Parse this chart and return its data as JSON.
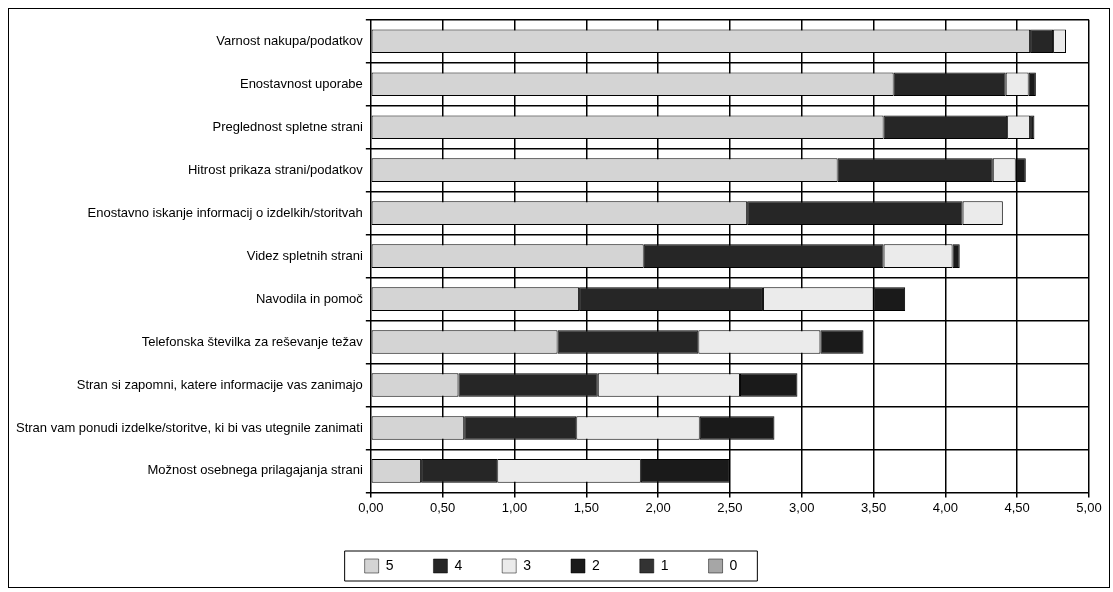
{
  "chart_data": {
    "type": "bar",
    "orientation": "horizontal",
    "stacked": true,
    "grid": true,
    "legend": "bottom",
    "categories": [
      "Varnost nakupa/podatkov",
      "Enostavnost uporabe",
      "Preglednost spletne strani",
      "Hitrost prikaza strani/podatkov",
      "Enostavno iskanje informacij o izdelkih/storitvah",
      "Videz spletnih strani",
      "Navodila in pomoč",
      "Telefonska številka za reševanje težav",
      "Stran si zapomni, katere informacije vas zanimajo",
      "Stran vam ponudi izdelke/storitve, ki bi vas utegnile zanimati",
      "Možnost osebnega prilagajanja strani"
    ],
    "series": [
      {
        "name": "5",
        "color": "#d4d4d4",
        "values": [
          4.59,
          3.64,
          3.57,
          3.25,
          2.62,
          1.9,
          1.45,
          1.3,
          0.61,
          0.65,
          0.35
        ]
      },
      {
        "name": "4",
        "color": "#262626",
        "values": [
          0.16,
          0.78,
          0.86,
          1.08,
          1.5,
          1.67,
          1.28,
          0.98,
          0.97,
          0.78,
          0.53
        ]
      },
      {
        "name": "3",
        "color": "#ebebeb",
        "values": [
          0.09,
          0.16,
          0.16,
          0.16,
          0.28,
          0.48,
          0.77,
          0.85,
          0.99,
          0.86,
          1.0
        ]
      },
      {
        "name": "2",
        "color": "#1a1a1a",
        "values": [
          null,
          0.05,
          0.03,
          0.07,
          null,
          0.05,
          0.22,
          0.3,
          0.4,
          0.52,
          0.62
        ]
      },
      {
        "name": "1",
        "color": "#333333",
        "values": [
          null,
          null,
          null,
          null,
          null,
          null,
          null,
          null,
          null,
          null,
          null
        ]
      },
      {
        "name": "0",
        "color": "#a6a6a6",
        "values": [
          null,
          null,
          null,
          null,
          null,
          null,
          null,
          null,
          null,
          null,
          null
        ]
      }
    ],
    "xlim": [
      0,
      5
    ],
    "xticks": [
      {
        "value": 0,
        "label": "0,00"
      },
      {
        "value": 0.5,
        "label": "0,50"
      },
      {
        "value": 1,
        "label": "1,00"
      },
      {
        "value": 1.5,
        "label": "1,50"
      },
      {
        "value": 2,
        "label": "2,00"
      },
      {
        "value": 2.5,
        "label": "2,50"
      },
      {
        "value": 3,
        "label": "3,00"
      },
      {
        "value": 3.5,
        "label": "3,50"
      },
      {
        "value": 4,
        "label": "4,00"
      },
      {
        "value": 4.5,
        "label": "4,50"
      },
      {
        "value": 5,
        "label": "5,00"
      }
    ]
  }
}
